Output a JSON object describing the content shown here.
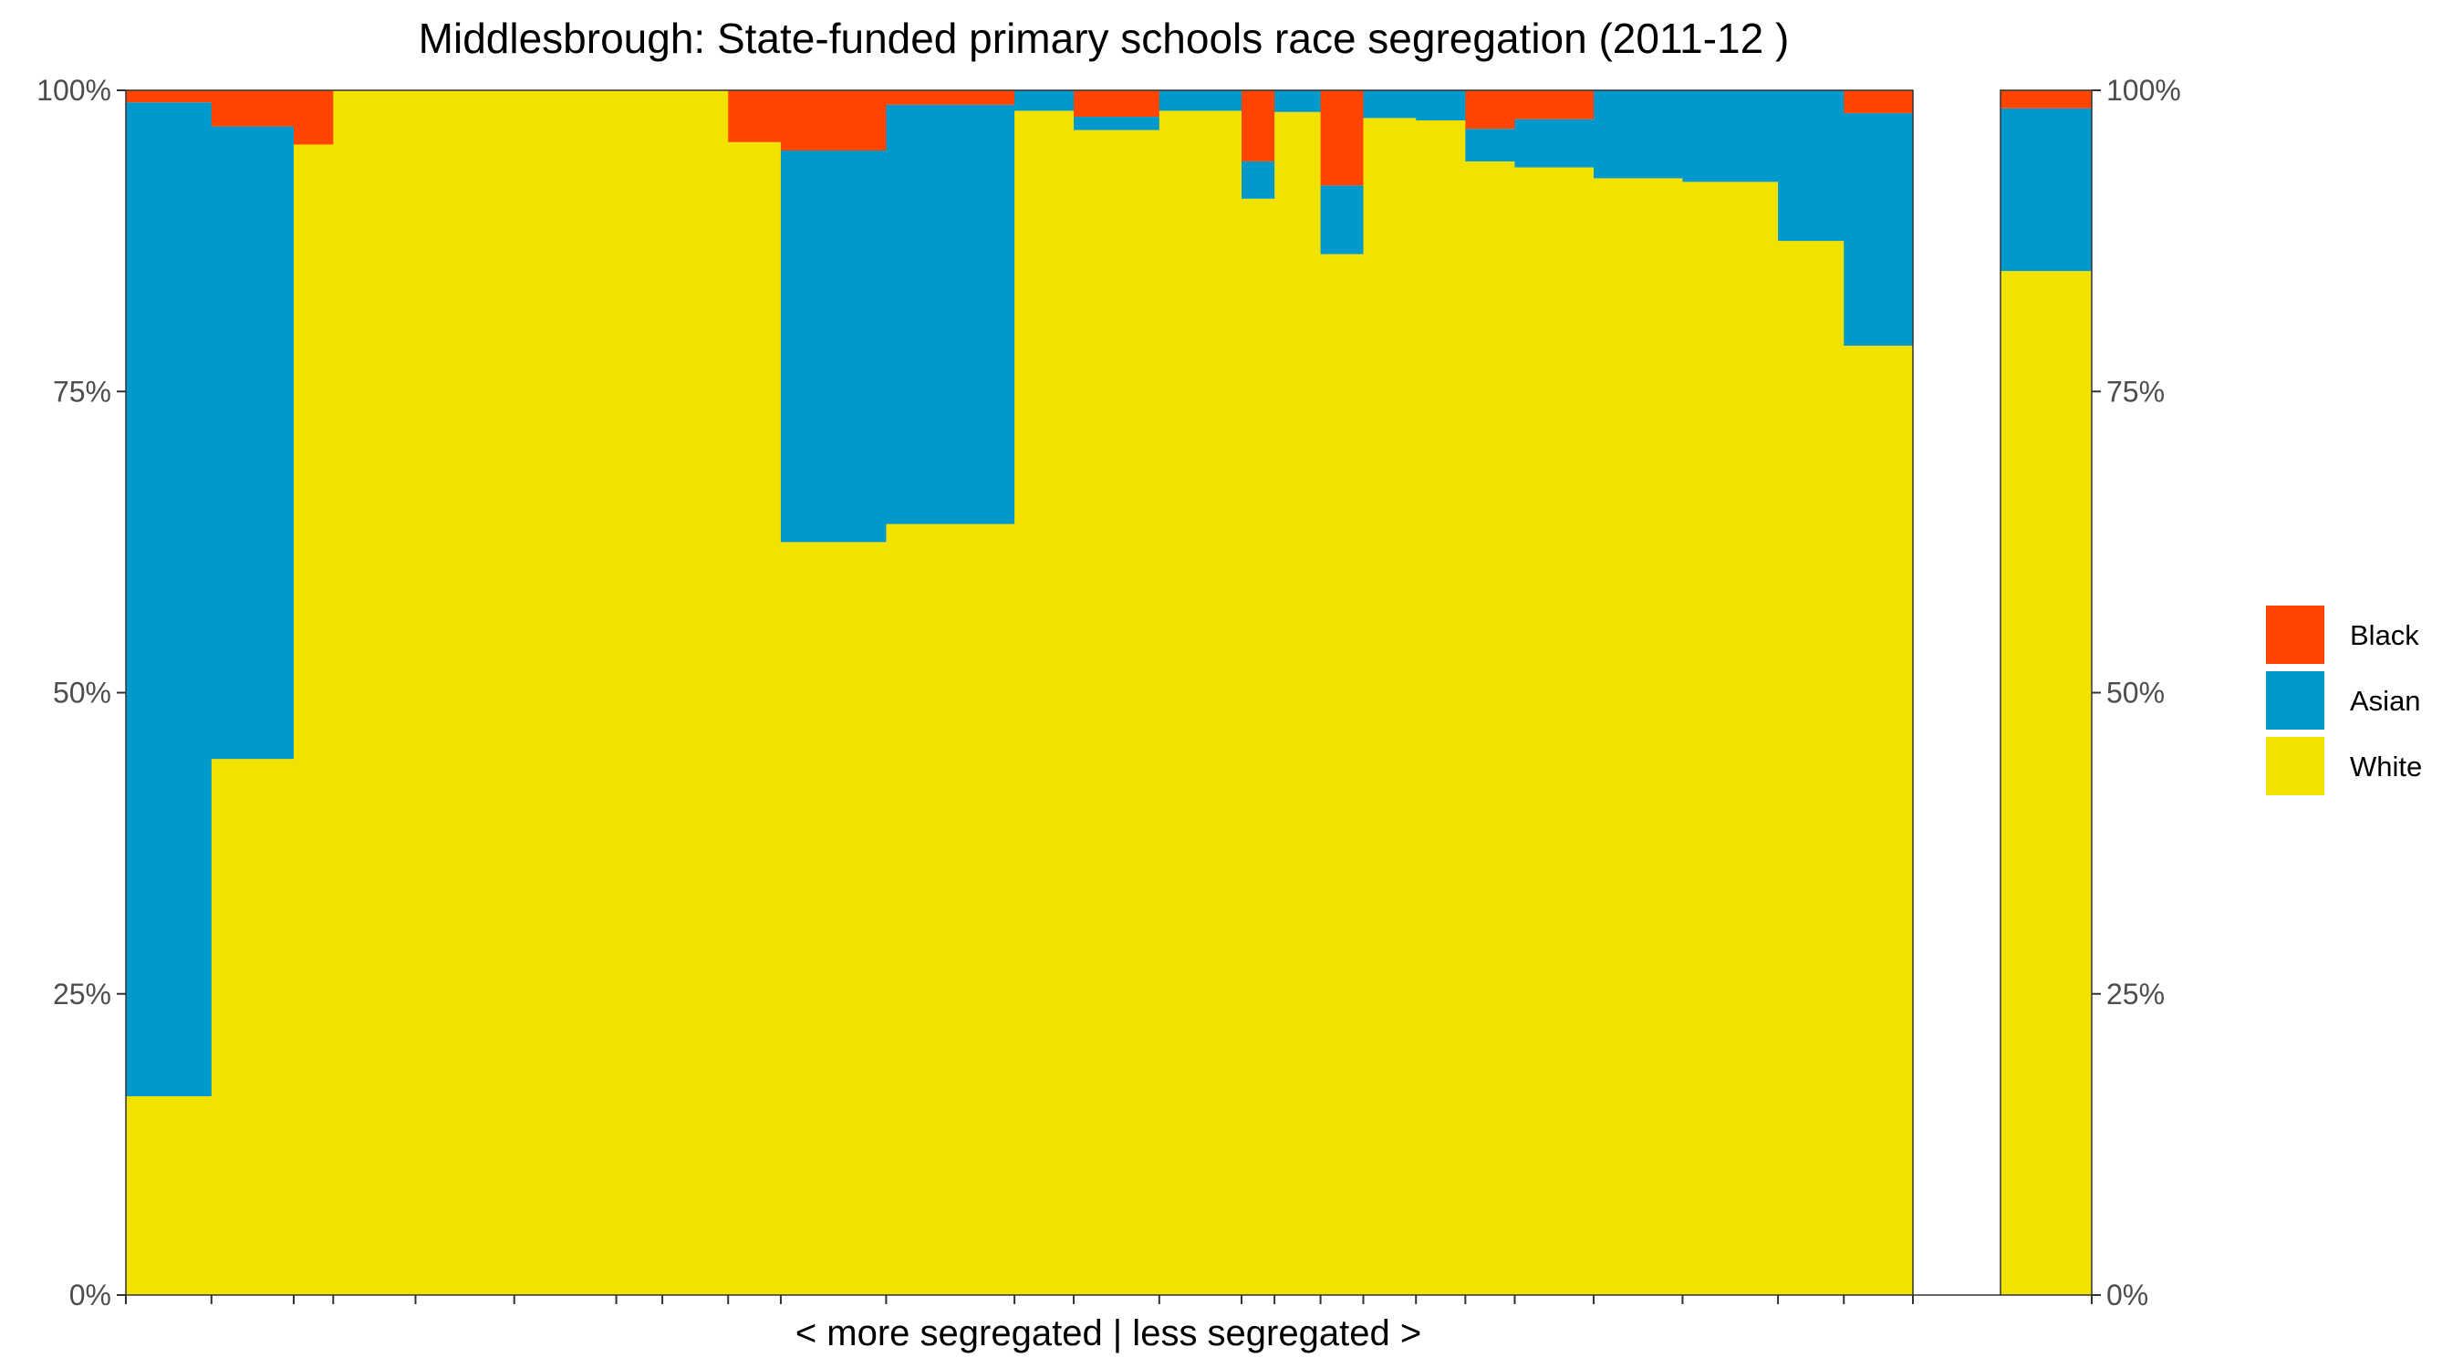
{
  "colors": {
    "Black": "#FF4500",
    "Asian": "#0099CC",
    "White": "#F2E200"
  },
  "chart_data": {
    "type": "bar",
    "stacked": true,
    "variable_width": true,
    "title": "Middlesbrough: State-funded primary schools race segregation (2011-12 )",
    "xlabel": "< more segregated | less segregated >",
    "ylabel": "",
    "ylim": [
      0,
      1
    ],
    "yticks": [
      "0%",
      "25%",
      "50%",
      "75%",
      "100%"
    ],
    "legend": {
      "position": "right",
      "order": [
        "Black",
        "Asian",
        "White"
      ]
    },
    "series_order": [
      "White",
      "Asian",
      "Black"
    ],
    "schools": [
      {
        "width": 2.6,
        "White": 0.165,
        "Asian": 0.825,
        "Black": 0.01
      },
      {
        "width": 2.5,
        "White": 0.445,
        "Asian": 0.525,
        "Black": 0.03
      },
      {
        "width": 1.2,
        "White": 0.955,
        "Asian": 0.0,
        "Black": 0.045
      },
      {
        "width": 2.5,
        "White": 1.0,
        "Asian": 0.0,
        "Black": 0.0
      },
      {
        "width": 3.0,
        "White": 1.0,
        "Asian": 0.0,
        "Black": 0.0
      },
      {
        "width": 3.1,
        "White": 1.0,
        "Asian": 0.0,
        "Black": 0.0
      },
      {
        "width": 1.4,
        "White": 1.0,
        "Asian": 0.0,
        "Black": 0.0
      },
      {
        "width": 2.0,
        "White": 1.0,
        "Asian": 0.0,
        "Black": 0.0
      },
      {
        "width": 1.6,
        "White": 0.957,
        "Asian": 0.0,
        "Black": 0.043
      },
      {
        "width": 3.2,
        "White": 0.625,
        "Asian": 0.325,
        "Black": 0.05
      },
      {
        "width": 3.9,
        "White": 0.64,
        "Asian": 0.348,
        "Black": 0.012
      },
      {
        "width": 1.8,
        "White": 0.983,
        "Asian": 0.017,
        "Black": 0.0
      },
      {
        "width": 2.6,
        "White": 0.967,
        "Asian": 0.011,
        "Black": 0.022
      },
      {
        "width": 2.5,
        "White": 0.983,
        "Asian": 0.017,
        "Black": 0.0
      },
      {
        "width": 1.0,
        "White": 0.91,
        "Asian": 0.031,
        "Black": 0.059
      },
      {
        "width": 1.4,
        "White": 0.982,
        "Asian": 0.018,
        "Black": 0.0
      },
      {
        "width": 1.3,
        "White": 0.864,
        "Asian": 0.057,
        "Black": 0.079
      },
      {
        "width": 1.6,
        "White": 0.977,
        "Asian": 0.023,
        "Black": 0.0
      },
      {
        "width": 1.5,
        "White": 0.975,
        "Asian": 0.025,
        "Black": 0.0
      },
      {
        "width": 1.5,
        "White": 0.941,
        "Asian": 0.027,
        "Black": 0.032
      },
      {
        "width": 2.4,
        "White": 0.936,
        "Asian": 0.04,
        "Black": 0.024
      },
      {
        "width": 2.7,
        "White": 0.927,
        "Asian": 0.073,
        "Black": 0.0
      },
      {
        "width": 2.9,
        "White": 0.924,
        "Asian": 0.076,
        "Black": 0.0
      },
      {
        "width": 2.0,
        "White": 0.875,
        "Asian": 0.125,
        "Black": 0.0
      },
      {
        "width": 2.1,
        "White": 0.788,
        "Asian": 0.193,
        "Black": 0.019
      }
    ],
    "overall": {
      "White": 0.85,
      "Asian": 0.135,
      "Black": 0.015
    }
  }
}
